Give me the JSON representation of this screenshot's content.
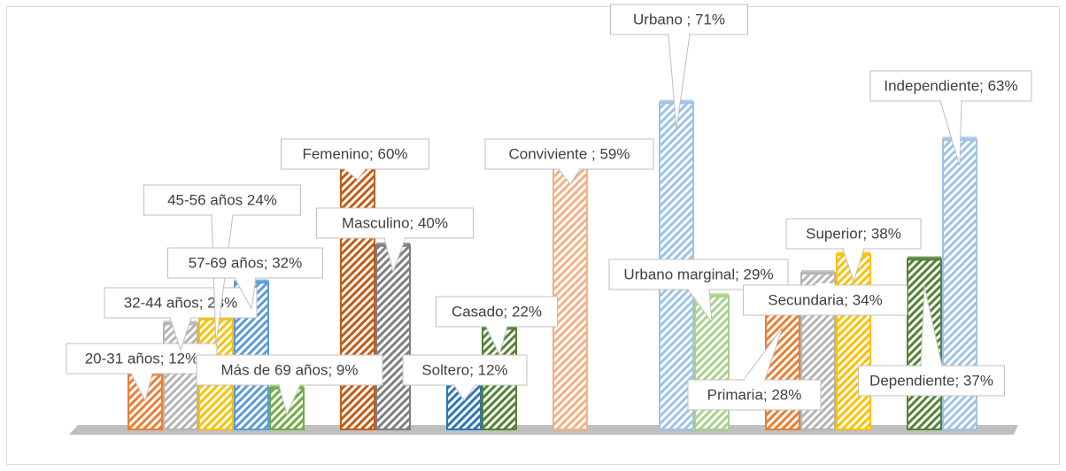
{
  "chart_data": {
    "type": "bar3d",
    "ylim": [
      0,
      75
    ],
    "values": [
      12,
      23,
      24,
      32,
      9,
      null,
      60,
      40,
      null,
      12,
      22,
      null,
      59,
      null,
      null,
      71,
      29,
      null,
      28,
      34,
      38,
      null,
      37,
      63
    ],
    "value_labels": [
      "20-31 años; 12%",
      "32-44 años; 23%",
      "45-56 años 24%",
      "57-69 años; 32%",
      "Más de 69 años; 9%",
      null,
      "Femenino; 60%",
      "Masculino; 40%",
      null,
      "Soltero; 12%",
      "Casado; 22%",
      null,
      "Conviviente ; 59%",
      null,
      null,
      "Urbano ; 71%",
      "Urbano marginal; 29%",
      null,
      "Primaria; 28%",
      "Secundaria; 34%",
      "Superior; 38%",
      null,
      "Dependiente; 37%",
      "Independiente; 63%"
    ],
    "colors": [
      "#ed7d31",
      "#b4b4b4",
      "#ffc000",
      "#5b9bd5",
      "#70ad47",
      null,
      "#c55a11",
      "#7f7f7f",
      null,
      "#2e75b6",
      "#548235",
      null,
      "#f4b183",
      null,
      null,
      "#9dc3e6",
      "#a9d18e",
      null,
      "#ed7d31",
      "#b4b4b4",
      "#ffc000",
      null,
      "#548235",
      "#9dc3e6"
    ]
  }
}
